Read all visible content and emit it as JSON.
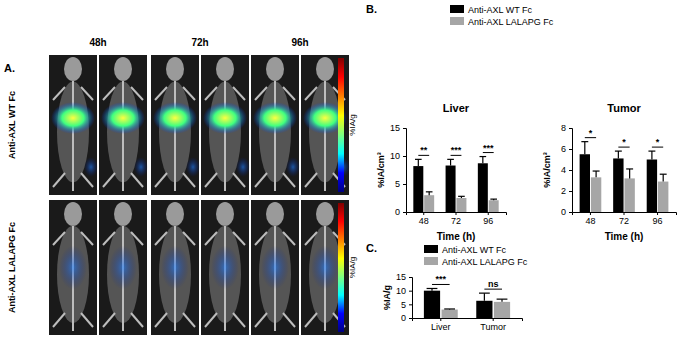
{
  "figure": {
    "panel_labels": [
      "A.",
      "B.",
      "C."
    ],
    "image_panel": {
      "columns": [
        "48h",
        "72h",
        "96h"
      ],
      "rows": [
        "Anti-AXL WT Fc",
        "Anti-AXL LALAPG Fc"
      ],
      "colorbar_label": "%IA/g"
    }
  },
  "chart_data": [
    {
      "type": "bar",
      "title": "Liver",
      "x_label": "Time (h)",
      "y_label": "%IA/cm³",
      "categories": [
        "48",
        "72",
        "96"
      ],
      "series": [
        {
          "name": "Anti-AXL WT Fc",
          "color": "#000000",
          "values": [
            8.2,
            8.3,
            8.7
          ],
          "errors": [
            1.2,
            1.1,
            1.2
          ]
        },
        {
          "name": "Anti-AXL LALAPG Fc",
          "color": "#a6a6a6",
          "values": [
            3.0,
            2.5,
            2.1
          ],
          "errors": [
            0.6,
            0.3,
            0.2
          ]
        }
      ],
      "ylim": [
        0,
        15
      ],
      "yticks": [
        0,
        5,
        10,
        15
      ],
      "annotations": [
        "**",
        "***",
        "***"
      ],
      "legend": "top"
    },
    {
      "type": "bar",
      "title": "Tumor",
      "x_label": "Time (h)",
      "y_label": "%IA/cm³",
      "categories": [
        "48",
        "72",
        "96"
      ],
      "series": [
        {
          "color": "#000000",
          "values": [
            5.5,
            5.1,
            5.0
          ],
          "errors": [
            1.2,
            0.7,
            0.8
          ]
        },
        {
          "color": "#a6a6a6",
          "values": [
            3.3,
            3.2,
            2.9
          ],
          "errors": [
            0.6,
            0.9,
            0.7
          ]
        }
      ],
      "ylim": [
        0,
        8
      ],
      "yticks": [
        0,
        2,
        4,
        6,
        8
      ],
      "annotations": [
        "*",
        "*",
        "*"
      ]
    },
    {
      "type": "bar",
      "y_label": "%IA/g",
      "categories": [
        "Liver",
        "Tumor"
      ],
      "series": [
        {
          "name": "Anti-AXL WT Fc",
          "color": "#000000",
          "values": [
            10.0,
            6.3
          ],
          "errors": [
            0.8,
            2.8
          ]
        },
        {
          "name": "Anti-AXL LALAPG Fc",
          "color": "#a6a6a6",
          "values": [
            3.1,
            5.9
          ],
          "errors": [
            0.2,
            1.0
          ]
        }
      ],
      "ylim": [
        0,
        15
      ],
      "yticks": [
        0,
        5,
        10,
        15
      ],
      "annotations": [
        "***",
        "ns"
      ],
      "legend": "top-left"
    }
  ]
}
